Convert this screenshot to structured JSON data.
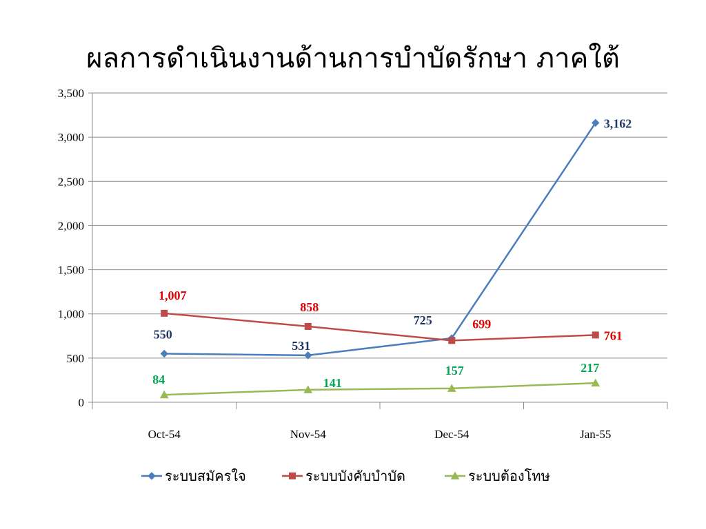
{
  "chart_data": {
    "type": "line",
    "title": "ผลการดำเนินงานด้านการบำบัดรักษา ภาคใต้",
    "categories": [
      "Oct-54",
      "Nov-54",
      "Dec-54",
      "Jan-55"
    ],
    "ylim": [
      0,
      3500
    ],
    "yticks": [
      0,
      500,
      1000,
      1500,
      2000,
      2500,
      3000,
      3500
    ],
    "ytick_labels": [
      "0",
      "500",
      "1,000",
      "1,500",
      "2,000",
      "2,500",
      "3,000",
      "3,500"
    ],
    "grid": true,
    "legend_position": "bottom",
    "series": [
      {
        "name": "ระบบสมัครใจ",
        "values": [
          550,
          531,
          725,
          3162
        ],
        "labels": [
          "550",
          "531",
          "725",
          "3,162"
        ],
        "color": "#4A7EBB",
        "label_color": "#1F3864",
        "marker": "diamond"
      },
      {
        "name": "ระบบบังคับบำบัด",
        "values": [
          1007,
          858,
          699,
          761
        ],
        "labels": [
          "1,007",
          "858",
          "699",
          "761"
        ],
        "color": "#BE4B48",
        "label_color": "#E00000",
        "marker": "square"
      },
      {
        "name": "ระบบต้องโทษ",
        "values": [
          84,
          141,
          157,
          217
        ],
        "labels": [
          "84",
          "141",
          "157",
          "217"
        ],
        "color": "#98B954",
        "label_color": "#00A651",
        "marker": "triangle"
      }
    ]
  }
}
